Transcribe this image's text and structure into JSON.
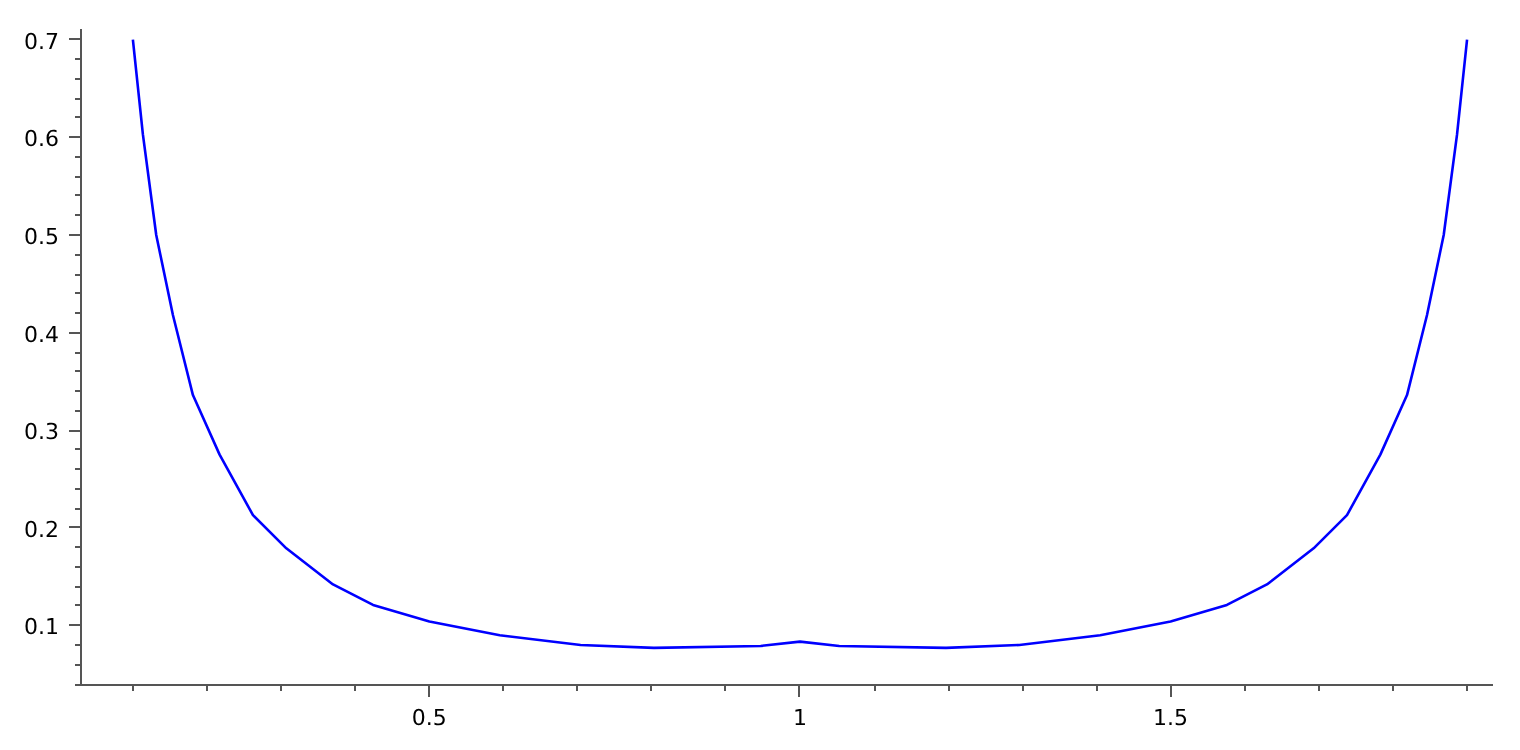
{
  "chart_data": {
    "type": "line",
    "x": [
      0.1,
      0.1135,
      0.1315,
      0.154,
      0.181,
      0.217,
      0.262,
      0.307,
      0.37,
      0.424,
      0.5,
      0.595,
      0.704,
      0.803,
      0.947,
      1,
      1.053,
      1.197,
      1.296,
      1.405,
      1.5,
      1.576,
      1.63,
      1.693,
      1.738,
      1.783,
      1.819,
      1.846,
      1.8685,
      1.8865,
      1.9
    ],
    "series": [
      {
        "color": "#0000ff",
        "values": [
          0.7,
          0.603,
          0.5,
          0.418,
          0.336,
          0.275,
          0.213,
          0.179,
          0.142,
          0.121,
          0.104,
          0.09,
          0.08,
          0.077,
          0.079,
          0.0834,
          0.079,
          0.077,
          0.08,
          0.09,
          0.104,
          0.121,
          0.142,
          0.179,
          0.213,
          0.275,
          0.336,
          0.418,
          0.5,
          0.603,
          0.7
        ]
      }
    ],
    "xlim": [
      0.03,
      1.935
    ],
    "ylim": [
      0.039,
      0.711
    ],
    "xticks": [
      0.5,
      1,
      1.5
    ],
    "yticks": [
      0.1,
      0.2,
      0.3,
      0.4,
      0.5,
      0.6,
      0.7
    ],
    "grid": false,
    "marker": "none",
    "line_style": "solid"
  }
}
